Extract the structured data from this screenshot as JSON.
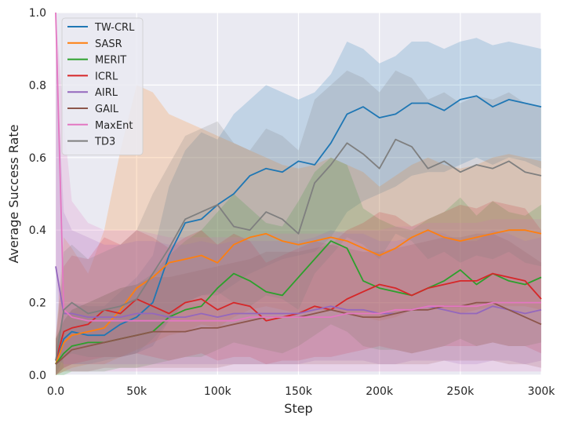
{
  "chart_data": {
    "type": "line",
    "xlabel": "Step",
    "ylabel": "Average Success Rate",
    "xlim": [
      0,
      300000
    ],
    "ylim": [
      0,
      1
    ],
    "grid": true,
    "legend_position": "top-left",
    "x_ticks": [
      {
        "value": 0,
        "label": "0.0"
      },
      {
        "value": 50000,
        "label": "50k"
      },
      {
        "value": 100000,
        "label": "100k"
      },
      {
        "value": 150000,
        "label": "150k"
      },
      {
        "value": 200000,
        "label": "200k"
      },
      {
        "value": 250000,
        "label": "250k"
      },
      {
        "value": 300000,
        "label": "300k"
      }
    ],
    "y_ticks": [
      {
        "value": 0,
        "label": "0.0"
      },
      {
        "value": 0.2,
        "label": "0.2"
      },
      {
        "value": 0.4,
        "label": "0.4"
      },
      {
        "value": 0.6,
        "label": "0.6"
      },
      {
        "value": 0.8,
        "label": "0.8"
      },
      {
        "value": 1.0,
        "label": "1.0"
      }
    ],
    "x": [
      0,
      5000,
      10000,
      20000,
      30000,
      40000,
      50000,
      60000,
      70000,
      80000,
      90000,
      100000,
      110000,
      120000,
      130000,
      140000,
      150000,
      160000,
      170000,
      180000,
      190000,
      200000,
      210000,
      220000,
      230000,
      240000,
      250000,
      260000,
      270000,
      280000,
      290000,
      300000
    ],
    "series": [
      {
        "name": "TW-CRL",
        "color": "#1f77b4",
        "values": [
          0.03,
          0.1,
          0.12,
          0.11,
          0.11,
          0.14,
          0.16,
          0.2,
          0.33,
          0.42,
          0.43,
          0.47,
          0.5,
          0.55,
          0.57,
          0.56,
          0.59,
          0.58,
          0.64,
          0.72,
          0.74,
          0.71,
          0.72,
          0.75,
          0.75,
          0.73,
          0.76,
          0.77,
          0.74,
          0.76,
          0.75,
          0.74
        ],
        "lower": [
          0.0,
          0.02,
          0.03,
          0.03,
          0.04,
          0.05,
          0.06,
          0.08,
          0.15,
          0.2,
          0.22,
          0.22,
          0.25,
          0.28,
          0.3,
          0.32,
          0.33,
          0.34,
          0.38,
          0.45,
          0.48,
          0.5,
          0.52,
          0.55,
          0.56,
          0.56,
          0.58,
          0.6,
          0.58,
          0.6,
          0.59,
          0.57
        ],
        "upper": [
          0.08,
          0.18,
          0.2,
          0.19,
          0.19,
          0.23,
          0.27,
          0.33,
          0.52,
          0.62,
          0.67,
          0.65,
          0.72,
          0.76,
          0.8,
          0.78,
          0.76,
          0.78,
          0.83,
          0.92,
          0.9,
          0.86,
          0.88,
          0.92,
          0.92,
          0.9,
          0.92,
          0.93,
          0.91,
          0.92,
          0.91,
          0.9
        ]
      },
      {
        "name": "SASR",
        "color": "#ff7f0e",
        "values": [
          0.03,
          0.09,
          0.11,
          0.12,
          0.13,
          0.18,
          0.24,
          0.27,
          0.31,
          0.32,
          0.33,
          0.31,
          0.36,
          0.38,
          0.39,
          0.37,
          0.36,
          0.37,
          0.38,
          0.37,
          0.35,
          0.33,
          0.35,
          0.38,
          0.4,
          0.38,
          0.37,
          0.38,
          0.39,
          0.4,
          0.4,
          0.39
        ],
        "lower": [
          0.0,
          0.01,
          0.02,
          0.03,
          0.03,
          0.05,
          0.07,
          0.09,
          0.11,
          0.12,
          0.14,
          0.13,
          0.16,
          0.18,
          0.19,
          0.18,
          0.17,
          0.18,
          0.18,
          0.17,
          0.16,
          0.15,
          0.16,
          0.18,
          0.19,
          0.18,
          0.17,
          0.18,
          0.19,
          0.19,
          0.19,
          0.18
        ],
        "upper": [
          0.1,
          0.38,
          0.35,
          0.28,
          0.4,
          0.62,
          0.8,
          0.78,
          0.72,
          0.7,
          0.68,
          0.66,
          0.64,
          0.62,
          0.6,
          0.58,
          0.57,
          0.58,
          0.6,
          0.58,
          0.56,
          0.52,
          0.55,
          0.58,
          0.6,
          0.58,
          0.57,
          0.58,
          0.6,
          0.61,
          0.6,
          0.59
        ]
      },
      {
        "name": "MERIT",
        "color": "#2ca02c",
        "values": [
          0.03,
          0.06,
          0.08,
          0.09,
          0.09,
          0.1,
          0.11,
          0.12,
          0.16,
          0.18,
          0.19,
          0.24,
          0.28,
          0.26,
          0.23,
          0.22,
          0.27,
          0.32,
          0.37,
          0.35,
          0.26,
          0.24,
          0.23,
          0.22,
          0.24,
          0.26,
          0.29,
          0.25,
          0.28,
          0.26,
          0.25,
          0.27
        ],
        "lower": [
          0.0,
          0.0,
          0.01,
          0.01,
          0.01,
          0.02,
          0.02,
          0.03,
          0.04,
          0.05,
          0.05,
          0.07,
          0.09,
          0.08,
          0.07,
          0.06,
          0.08,
          0.11,
          0.14,
          0.12,
          0.08,
          0.07,
          0.07,
          0.06,
          0.07,
          0.08,
          0.1,
          0.08,
          0.09,
          0.08,
          0.08,
          0.09
        ],
        "upper": [
          0.1,
          0.15,
          0.18,
          0.2,
          0.22,
          0.24,
          0.25,
          0.28,
          0.33,
          0.37,
          0.4,
          0.45,
          0.5,
          0.46,
          0.42,
          0.41,
          0.48,
          0.56,
          0.6,
          0.58,
          0.46,
          0.43,
          0.41,
          0.4,
          0.43,
          0.45,
          0.49,
          0.44,
          0.48,
          0.45,
          0.44,
          0.47
        ]
      },
      {
        "name": "ICRL",
        "color": "#d62728",
        "values": [
          0.04,
          0.12,
          0.13,
          0.14,
          0.18,
          0.17,
          0.21,
          0.19,
          0.17,
          0.2,
          0.21,
          0.18,
          0.2,
          0.19,
          0.15,
          0.16,
          0.17,
          0.19,
          0.18,
          0.21,
          0.23,
          0.25,
          0.24,
          0.22,
          0.24,
          0.25,
          0.26,
          0.26,
          0.28,
          0.27,
          0.26,
          0.21
        ],
        "lower": [
          0.0,
          0.02,
          0.03,
          0.04,
          0.05,
          0.05,
          0.06,
          0.05,
          0.04,
          0.05,
          0.06,
          0.04,
          0.05,
          0.05,
          0.03,
          0.04,
          0.04,
          0.05,
          0.05,
          0.06,
          0.07,
          0.08,
          0.07,
          0.06,
          0.07,
          0.08,
          0.08,
          0.08,
          0.09,
          0.08,
          0.08,
          0.06
        ],
        "upper": [
          0.1,
          0.3,
          0.33,
          0.32,
          0.38,
          0.36,
          0.4,
          0.38,
          0.35,
          0.38,
          0.4,
          0.36,
          0.39,
          0.37,
          0.31,
          0.33,
          0.35,
          0.37,
          0.36,
          0.4,
          0.42,
          0.45,
          0.44,
          0.41,
          0.43,
          0.45,
          0.47,
          0.46,
          0.48,
          0.47,
          0.46,
          0.4
        ]
      },
      {
        "name": "AIRL",
        "color": "#9467bd",
        "values": [
          0.3,
          0.17,
          0.17,
          0.16,
          0.16,
          0.16,
          0.17,
          0.17,
          0.16,
          0.16,
          0.17,
          0.16,
          0.17,
          0.17,
          0.17,
          0.17,
          0.17,
          0.18,
          0.19,
          0.18,
          0.18,
          0.17,
          0.17,
          0.18,
          0.19,
          0.18,
          0.17,
          0.17,
          0.19,
          0.18,
          0.17,
          0.18
        ],
        "lower": [
          0.05,
          0.03,
          0.03,
          0.03,
          0.03,
          0.03,
          0.03,
          0.03,
          0.03,
          0.03,
          0.03,
          0.03,
          0.03,
          0.03,
          0.03,
          0.03,
          0.03,
          0.04,
          0.04,
          0.04,
          0.04,
          0.03,
          0.03,
          0.04,
          0.04,
          0.04,
          0.03,
          0.03,
          0.04,
          0.04,
          0.03,
          0.04
        ],
        "upper": [
          0.9,
          0.45,
          0.4,
          0.38,
          0.36,
          0.36,
          0.37,
          0.37,
          0.36,
          0.36,
          0.37,
          0.36,
          0.37,
          0.37,
          0.37,
          0.37,
          0.37,
          0.38,
          0.4,
          0.39,
          0.39,
          0.37,
          0.37,
          0.38,
          0.4,
          0.39,
          0.37,
          0.37,
          0.4,
          0.39,
          0.37,
          0.38
        ]
      },
      {
        "name": "GAIL",
        "color": "#8c564b",
        "values": [
          0.03,
          0.05,
          0.07,
          0.08,
          0.09,
          0.1,
          0.11,
          0.12,
          0.12,
          0.12,
          0.13,
          0.13,
          0.14,
          0.15,
          0.16,
          0.16,
          0.16,
          0.17,
          0.18,
          0.17,
          0.16,
          0.16,
          0.17,
          0.18,
          0.18,
          0.19,
          0.19,
          0.2,
          0.2,
          0.18,
          0.16,
          0.14
        ],
        "lower": [
          0.0,
          0.01,
          0.01,
          0.01,
          0.02,
          0.02,
          0.02,
          0.02,
          0.02,
          0.02,
          0.02,
          0.02,
          0.03,
          0.03,
          0.03,
          0.03,
          0.03,
          0.03,
          0.03,
          0.03,
          0.03,
          0.03,
          0.03,
          0.03,
          0.03,
          0.04,
          0.04,
          0.04,
          0.04,
          0.03,
          0.03,
          0.02
        ],
        "upper": [
          0.1,
          0.15,
          0.18,
          0.2,
          0.22,
          0.24,
          0.25,
          0.27,
          0.27,
          0.28,
          0.29,
          0.3,
          0.31,
          0.32,
          0.34,
          0.34,
          0.34,
          0.35,
          0.36,
          0.35,
          0.34,
          0.34,
          0.35,
          0.36,
          0.37,
          0.38,
          0.38,
          0.39,
          0.39,
          0.37,
          0.34,
          0.31
        ]
      },
      {
        "name": "MaxEnt",
        "color": "#e377c2",
        "values": [
          1.0,
          0.18,
          0.16,
          0.15,
          0.15,
          0.15,
          0.15,
          0.15,
          0.15,
          0.15,
          0.15,
          0.15,
          0.15,
          0.16,
          0.16,
          0.16,
          0.16,
          0.16,
          0.16,
          0.17,
          0.17,
          0.17,
          0.18,
          0.18,
          0.19,
          0.19,
          0.19,
          0.19,
          0.2,
          0.2,
          0.2,
          0.2
        ],
        "lower": [
          0.3,
          0.02,
          0.01,
          0.01,
          0.01,
          0.01,
          0.01,
          0.01,
          0.01,
          0.01,
          0.01,
          0.01,
          0.01,
          0.01,
          0.01,
          0.01,
          0.01,
          0.01,
          0.01,
          0.01,
          0.01,
          0.01,
          0.01,
          0.01,
          0.01,
          0.01,
          0.01,
          0.01,
          0.01,
          0.01,
          0.01,
          0.01
        ],
        "upper": [
          1.0,
          0.7,
          0.48,
          0.42,
          0.4,
          0.4,
          0.4,
          0.39,
          0.38,
          0.38,
          0.38,
          0.38,
          0.38,
          0.38,
          0.39,
          0.39,
          0.39,
          0.39,
          0.39,
          0.4,
          0.4,
          0.4,
          0.41,
          0.41,
          0.42,
          0.42,
          0.42,
          0.42,
          0.43,
          0.43,
          0.43,
          0.43
        ]
      },
      {
        "name": "TD3",
        "color": "#7f7f7f",
        "values": [
          0.04,
          0.18,
          0.2,
          0.17,
          0.18,
          0.19,
          0.21,
          0.28,
          0.35,
          0.43,
          0.45,
          0.47,
          0.41,
          0.4,
          0.45,
          0.43,
          0.39,
          0.53,
          0.58,
          0.64,
          0.61,
          0.57,
          0.65,
          0.63,
          0.57,
          0.59,
          0.56,
          0.58,
          0.57,
          0.59,
          0.56,
          0.55
        ],
        "lower": [
          0.0,
          0.05,
          0.06,
          0.05,
          0.05,
          0.05,
          0.06,
          0.1,
          0.15,
          0.2,
          0.22,
          0.23,
          0.2,
          0.19,
          0.22,
          0.21,
          0.18,
          0.28,
          0.33,
          0.38,
          0.36,
          0.32,
          0.39,
          0.37,
          0.32,
          0.34,
          0.31,
          0.33,
          0.32,
          0.34,
          0.31,
          0.3
        ],
        "upper": [
          0.1,
          0.34,
          0.36,
          0.32,
          0.34,
          0.36,
          0.4,
          0.5,
          0.58,
          0.66,
          0.68,
          0.7,
          0.64,
          0.62,
          0.68,
          0.66,
          0.62,
          0.76,
          0.8,
          0.84,
          0.82,
          0.78,
          0.84,
          0.82,
          0.76,
          0.78,
          0.75,
          0.77,
          0.76,
          0.78,
          0.75,
          0.74
        ]
      }
    ]
  }
}
